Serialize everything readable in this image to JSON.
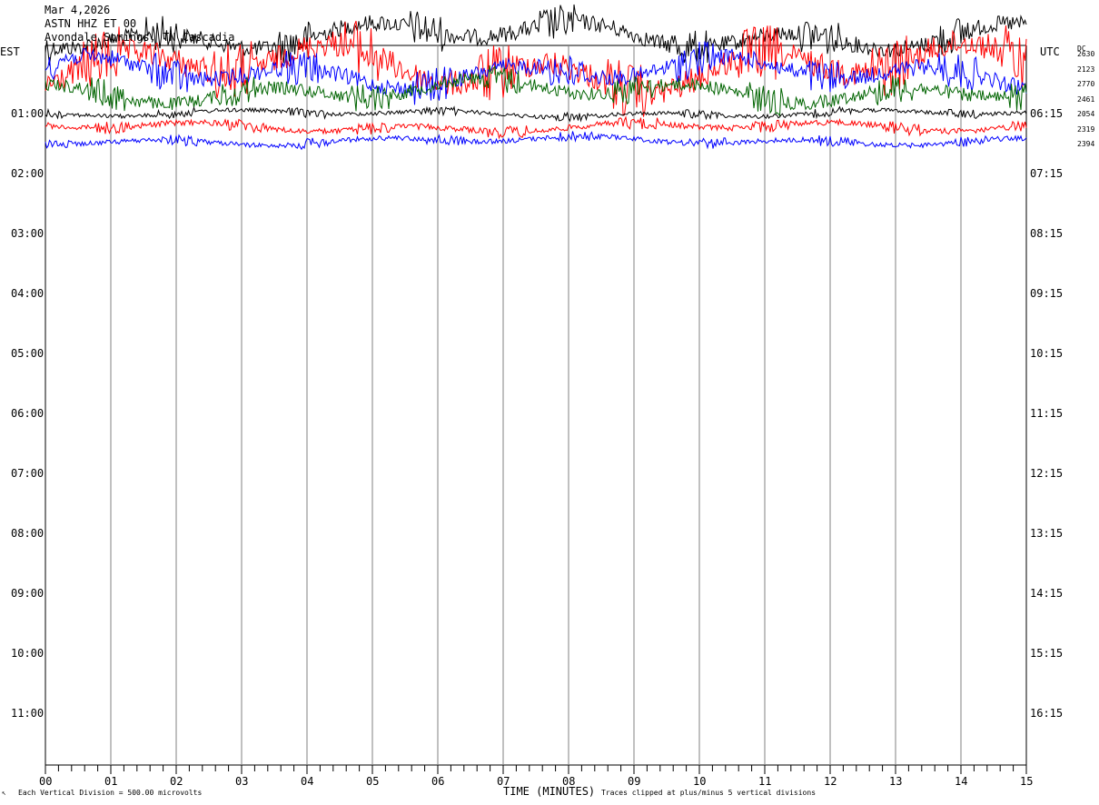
{
  "header": {
    "date": "Mar 4,2026",
    "station": "ASTN HHZ ET 00",
    "location": "Avondale Springs, TN Cascadia"
  },
  "left_tz": "EST",
  "right_tz": "UTC",
  "dc_label": "DC",
  "dc_values": [
    "2630",
    "2123",
    "2770",
    "2461",
    "2054",
    "2319",
    "2394"
  ],
  "footer": {
    "division": "Each Vertical Division =  500.00 microvolts",
    "clip": "Traces clipped at plus/minus 5 vertical divisions",
    "xtitle": "TIME (MINUTES)"
  },
  "colors": {
    "black": "#000000",
    "red": "#ff0000",
    "blue": "#0000ff",
    "green": "#006400",
    "grid": "#808080"
  },
  "chart_data": {
    "type": "line",
    "title": "ASTN HHZ ET 00",
    "xlabel": "TIME (MINUTES)",
    "x_ticks": [
      "00",
      "01",
      "02",
      "03",
      "04",
      "05",
      "06",
      "07",
      "08",
      "09",
      "10",
      "11",
      "12",
      "13",
      "14",
      "15"
    ],
    "xlim": [
      0,
      15
    ],
    "y_labels_left": [
      "01:00",
      "02:00",
      "03:00",
      "04:00",
      "05:00",
      "06:00",
      "07:00",
      "08:00",
      "09:00",
      "10:00",
      "11:00"
    ],
    "y_labels_right": [
      "06:15",
      "07:15",
      "08:15",
      "09:15",
      "10:15",
      "11:15",
      "12:15",
      "13:15",
      "14:15",
      "15:15",
      "16:15"
    ],
    "series": [
      {
        "color": "black",
        "dc": "2630",
        "amp": 1.0
      },
      {
        "color": "red",
        "dc": "2123",
        "amp": 1.6
      },
      {
        "color": "blue",
        "dc": "2770",
        "amp": 1.0
      },
      {
        "color": "green",
        "dc": "2461",
        "amp": 0.8
      },
      {
        "color": "black",
        "dc": "2054",
        "amp": 0.25
      },
      {
        "color": "red",
        "dc": "2319",
        "amp": 0.35
      },
      {
        "color": "blue",
        "dc": "2394",
        "amp": 0.3
      }
    ]
  }
}
